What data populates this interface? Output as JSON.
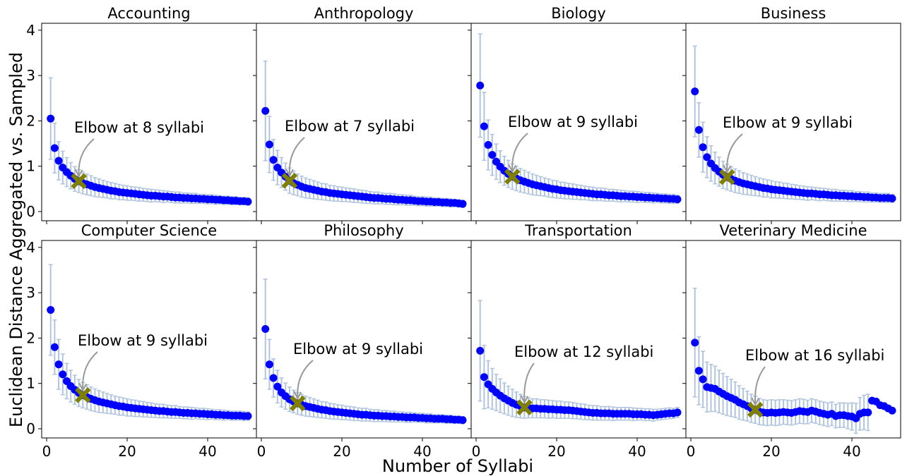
{
  "chart_data": {
    "type": "scatter",
    "layout": "2x4 small multiples, shared axes",
    "xlabel": "Number of Syllabi",
    "ylabel": "Euclidean Distance Aggregated vs. Sampled",
    "xlim": [
      -1,
      52
    ],
    "ylim": [
      -0.15,
      4.15
    ],
    "xticks": [
      0,
      20,
      40
    ],
    "yticks": [
      0,
      1,
      2,
      3,
      4
    ],
    "colors": {
      "points": "#0000ff",
      "errorbars": "#b0c4de",
      "elbow": "#808000",
      "arrow": "#999999"
    },
    "panels": [
      {
        "title": "Accounting",
        "elbow": 8,
        "annotation": "Elbow at 8 syllabi",
        "values": [
          2.05,
          1.4,
          1.12,
          0.97,
          0.87,
          0.79,
          0.72,
          0.67,
          0.63,
          0.6,
          0.57,
          0.54,
          0.52,
          0.5,
          0.48,
          0.46,
          0.45,
          0.43,
          0.42,
          0.41,
          0.4,
          0.39,
          0.38,
          0.37,
          0.36,
          0.35,
          0.35,
          0.34,
          0.33,
          0.33,
          0.32,
          0.31,
          0.31,
          0.3,
          0.3,
          0.29,
          0.29,
          0.28,
          0.28,
          0.27,
          0.27,
          0.26,
          0.26,
          0.25,
          0.25,
          0.24,
          0.24,
          0.23,
          0.23,
          0.22
        ],
        "err": [
          0.9,
          0.55,
          0.42,
          0.36,
          0.32,
          0.29,
          0.27,
          0.25,
          0.24,
          0.23,
          0.22,
          0.21,
          0.2,
          0.19,
          0.18,
          0.18,
          0.17,
          0.17,
          0.16,
          0.16,
          0.15,
          0.15,
          0.15,
          0.14,
          0.14,
          0.14,
          0.13,
          0.13,
          0.13,
          0.12,
          0.12,
          0.12,
          0.12,
          0.11,
          0.11,
          0.11,
          0.11,
          0.1,
          0.1,
          0.1,
          0.1,
          0.1,
          0.09,
          0.09,
          0.09,
          0.09,
          0.09,
          0.08,
          0.08,
          0.08
        ]
      },
      {
        "title": "Anthropology",
        "elbow": 7,
        "annotation": "Elbow at 7 syllabi",
        "values": [
          2.22,
          1.48,
          1.14,
          0.97,
          0.86,
          0.77,
          0.68,
          0.63,
          0.59,
          0.55,
          0.52,
          0.5,
          0.48,
          0.46,
          0.44,
          0.43,
          0.41,
          0.4,
          0.39,
          0.38,
          0.37,
          0.36,
          0.35,
          0.34,
          0.33,
          0.32,
          0.31,
          0.3,
          0.3,
          0.29,
          0.28,
          0.28,
          0.27,
          0.26,
          0.26,
          0.25,
          0.25,
          0.24,
          0.23,
          0.23,
          0.22,
          0.22,
          0.21,
          0.21,
          0.2,
          0.2,
          0.19,
          0.19,
          0.18,
          0.17
        ],
        "err": [
          1.1,
          0.62,
          0.45,
          0.38,
          0.33,
          0.3,
          0.28,
          0.26,
          0.24,
          0.23,
          0.22,
          0.21,
          0.2,
          0.19,
          0.18,
          0.18,
          0.17,
          0.17,
          0.16,
          0.16,
          0.15,
          0.15,
          0.15,
          0.14,
          0.14,
          0.14,
          0.13,
          0.13,
          0.13,
          0.12,
          0.12,
          0.12,
          0.12,
          0.11,
          0.11,
          0.11,
          0.11,
          0.1,
          0.1,
          0.1,
          0.1,
          0.1,
          0.09,
          0.09,
          0.09,
          0.09,
          0.09,
          0.08,
          0.08,
          0.08
        ]
      },
      {
        "title": "Biology",
        "elbow": 9,
        "annotation": "Elbow at 9 syllabi",
        "values": [
          2.78,
          1.88,
          1.47,
          1.25,
          1.1,
          0.99,
          0.9,
          0.83,
          0.77,
          0.73,
          0.69,
          0.66,
          0.63,
          0.6,
          0.58,
          0.56,
          0.54,
          0.52,
          0.5,
          0.49,
          0.47,
          0.46,
          0.45,
          0.44,
          0.43,
          0.42,
          0.41,
          0.4,
          0.39,
          0.38,
          0.38,
          0.37,
          0.36,
          0.36,
          0.35,
          0.34,
          0.34,
          0.33,
          0.33,
          0.32,
          0.32,
          0.31,
          0.31,
          0.3,
          0.3,
          0.29,
          0.29,
          0.28,
          0.28,
          0.27
        ],
        "err": [
          1.14,
          0.75,
          0.55,
          0.45,
          0.39,
          0.35,
          0.32,
          0.3,
          0.28,
          0.27,
          0.26,
          0.25,
          0.24,
          0.23,
          0.22,
          0.21,
          0.2,
          0.2,
          0.19,
          0.19,
          0.18,
          0.18,
          0.17,
          0.17,
          0.16,
          0.16,
          0.15,
          0.15,
          0.15,
          0.14,
          0.14,
          0.14,
          0.13,
          0.13,
          0.13,
          0.13,
          0.12,
          0.12,
          0.12,
          0.12,
          0.11,
          0.11,
          0.11,
          0.11,
          0.1,
          0.1,
          0.1,
          0.1,
          0.1,
          0.09
        ]
      },
      {
        "title": "Business",
        "elbow": 9,
        "annotation": "Elbow at 9 syllabi",
        "values": [
          2.65,
          1.8,
          1.42,
          1.2,
          1.06,
          0.96,
          0.88,
          0.81,
          0.76,
          0.72,
          0.68,
          0.65,
          0.62,
          0.6,
          0.58,
          0.56,
          0.54,
          0.52,
          0.51,
          0.49,
          0.48,
          0.47,
          0.46,
          0.45,
          0.44,
          0.43,
          0.42,
          0.41,
          0.4,
          0.4,
          0.39,
          0.38,
          0.38,
          0.37,
          0.36,
          0.36,
          0.35,
          0.35,
          0.34,
          0.34,
          0.33,
          0.33,
          0.32,
          0.32,
          0.31,
          0.31,
          0.3,
          0.3,
          0.3,
          0.29
        ],
        "err": [
          1.0,
          0.6,
          0.55,
          0.45,
          0.39,
          0.35,
          0.32,
          0.3,
          0.28,
          0.27,
          0.26,
          0.25,
          0.24,
          0.23,
          0.22,
          0.21,
          0.2,
          0.2,
          0.19,
          0.19,
          0.18,
          0.18,
          0.17,
          0.17,
          0.16,
          0.16,
          0.15,
          0.15,
          0.15,
          0.14,
          0.14,
          0.14,
          0.13,
          0.13,
          0.13,
          0.13,
          0.12,
          0.12,
          0.12,
          0.12,
          0.11,
          0.11,
          0.11,
          0.11,
          0.1,
          0.1,
          0.1,
          0.1,
          0.1,
          0.09
        ]
      },
      {
        "title": "Computer Science",
        "elbow": 9,
        "annotation": "Elbow at 9 syllabi",
        "values": [
          2.62,
          1.8,
          1.42,
          1.2,
          1.05,
          0.94,
          0.86,
          0.79,
          0.74,
          0.7,
          0.66,
          0.63,
          0.6,
          0.58,
          0.56,
          0.54,
          0.52,
          0.5,
          0.49,
          0.47,
          0.46,
          0.45,
          0.44,
          0.43,
          0.42,
          0.41,
          0.4,
          0.39,
          0.39,
          0.38,
          0.37,
          0.37,
          0.36,
          0.35,
          0.35,
          0.34,
          0.34,
          0.33,
          0.33,
          0.32,
          0.32,
          0.31,
          0.31,
          0.3,
          0.3,
          0.29,
          0.29,
          0.29,
          0.28,
          0.28
        ],
        "err": [
          1.0,
          0.6,
          0.55,
          0.45,
          0.39,
          0.35,
          0.32,
          0.3,
          0.28,
          0.27,
          0.26,
          0.25,
          0.24,
          0.23,
          0.22,
          0.21,
          0.2,
          0.2,
          0.19,
          0.19,
          0.18,
          0.18,
          0.17,
          0.17,
          0.16,
          0.16,
          0.15,
          0.15,
          0.15,
          0.14,
          0.14,
          0.14,
          0.13,
          0.13,
          0.13,
          0.13,
          0.12,
          0.12,
          0.12,
          0.12,
          0.11,
          0.11,
          0.11,
          0.11,
          0.1,
          0.1,
          0.1,
          0.1,
          0.1,
          0.09
        ]
      },
      {
        "title": "Philosophy",
        "elbow": 9,
        "annotation": "Elbow at 9 syllabi",
        "values": [
          2.2,
          1.42,
          1.12,
          0.93,
          0.8,
          0.72,
          0.65,
          0.6,
          0.56,
          0.53,
          0.5,
          0.48,
          0.46,
          0.44,
          0.42,
          0.41,
          0.39,
          0.38,
          0.37,
          0.36,
          0.35,
          0.34,
          0.33,
          0.32,
          0.31,
          0.31,
          0.3,
          0.29,
          0.29,
          0.28,
          0.28,
          0.27,
          0.27,
          0.26,
          0.26,
          0.25,
          0.25,
          0.25,
          0.24,
          0.24,
          0.23,
          0.23,
          0.22,
          0.22,
          0.22,
          0.21,
          0.21,
          0.2,
          0.2,
          0.19
        ],
        "err": [
          1.1,
          0.55,
          0.42,
          0.36,
          0.32,
          0.29,
          0.27,
          0.25,
          0.24,
          0.23,
          0.22,
          0.21,
          0.2,
          0.19,
          0.18,
          0.18,
          0.17,
          0.17,
          0.16,
          0.16,
          0.15,
          0.15,
          0.15,
          0.14,
          0.14,
          0.14,
          0.13,
          0.13,
          0.13,
          0.12,
          0.12,
          0.12,
          0.12,
          0.11,
          0.11,
          0.11,
          0.11,
          0.1,
          0.1,
          0.1,
          0.1,
          0.1,
          0.09,
          0.09,
          0.09,
          0.09,
          0.09,
          0.08,
          0.08,
          0.08
        ]
      },
      {
        "title": "Transportation",
        "elbow": 12,
        "annotation": "Elbow at 12 syllabi",
        "values": [
          1.72,
          1.14,
          0.98,
          0.88,
          0.8,
          0.73,
          0.67,
          0.62,
          0.57,
          0.53,
          0.5,
          0.47,
          0.46,
          0.45,
          0.45,
          0.44,
          0.44,
          0.43,
          0.43,
          0.42,
          0.42,
          0.41,
          0.41,
          0.4,
          0.39,
          0.38,
          0.37,
          0.36,
          0.35,
          0.35,
          0.34,
          0.34,
          0.34,
          0.33,
          0.33,
          0.33,
          0.33,
          0.33,
          0.32,
          0.32,
          0.32,
          0.31,
          0.31,
          0.3,
          0.31,
          0.32,
          0.33,
          0.34,
          0.34,
          0.36
        ],
        "err": [
          1.11,
          0.7,
          0.52,
          0.45,
          0.4,
          0.37,
          0.34,
          0.32,
          0.3,
          0.28,
          0.26,
          0.24,
          0.22,
          0.21,
          0.21,
          0.2,
          0.2,
          0.2,
          0.19,
          0.19,
          0.19,
          0.18,
          0.18,
          0.18,
          0.17,
          0.17,
          0.17,
          0.16,
          0.16,
          0.16,
          0.15,
          0.15,
          0.15,
          0.15,
          0.14,
          0.14,
          0.14,
          0.14,
          0.14,
          0.13,
          0.13,
          0.13,
          0.13,
          0.13,
          0.12,
          0.12,
          0.12,
          0.12,
          0.11,
          0.11
        ]
      },
      {
        "title": "Veterinary Medicine",
        "elbow": 16,
        "annotation": "Elbow at 16 syllabi",
        "values": [
          1.9,
          1.28,
          1.09,
          0.92,
          0.9,
          0.88,
          0.82,
          0.77,
          0.72,
          0.68,
          0.64,
          0.58,
          0.54,
          0.5,
          0.45,
          0.42,
          0.38,
          0.36,
          0.35,
          0.36,
          0.35,
          0.36,
          0.37,
          0.36,
          0.35,
          0.37,
          0.39,
          0.38,
          0.37,
          0.4,
          0.38,
          0.35,
          0.33,
          0.31,
          0.33,
          0.28,
          0.3,
          0.3,
          0.28,
          0.27,
          0.23,
          0.33,
          0.36,
          0.36,
          0.62,
          0.6,
          0.52,
          0.5,
          0.45,
          0.4
        ],
        "err": [
          1.2,
          0.75,
          0.62,
          0.55,
          0.52,
          0.5,
          0.47,
          0.45,
          0.43,
          0.41,
          0.39,
          0.37,
          0.35,
          0.33,
          0.31,
          0.3,
          0.29,
          0.28,
          0.28,
          0.28,
          0.28,
          0.28,
          0.27,
          0.27,
          0.27,
          0.27,
          0.27,
          0.27,
          0.26,
          0.26,
          0.26,
          0.26,
          0.26,
          0.26,
          0.26,
          0.26,
          0.27,
          0.27,
          0.28,
          0.3,
          0.33,
          0.36,
          0.38,
          0.4,
          null,
          null,
          null,
          null,
          null,
          null
        ]
      }
    ]
  }
}
